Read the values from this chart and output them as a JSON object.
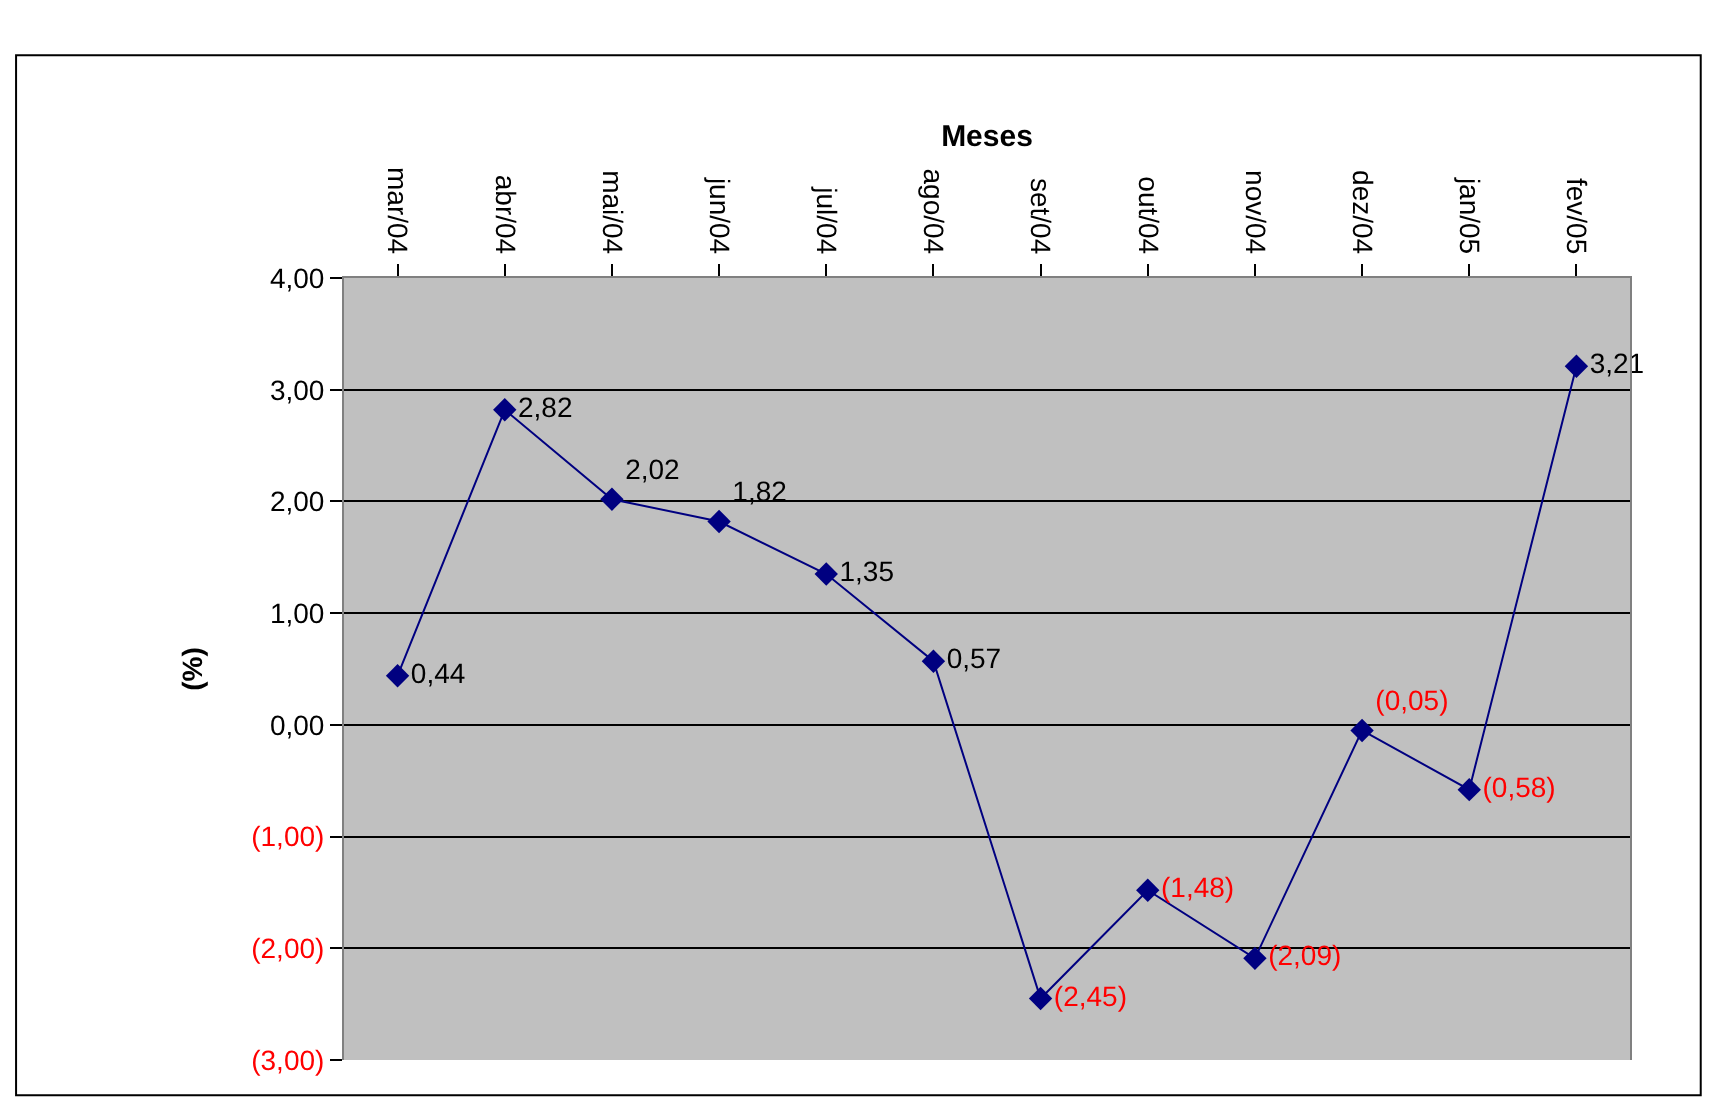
{
  "chart_data": {
    "type": "line",
    "xlabel": "Meses",
    "ylabel": "(%)",
    "categories": [
      "mar/04",
      "abr/04",
      "mai/04",
      "jun/04",
      "jul/04",
      "ago/04",
      "set/04",
      "out/04",
      "nov/04",
      "dez/04",
      "jan/05",
      "fev/05"
    ],
    "series": [
      {
        "color": "#000080",
        "values": [
          0.44,
          2.82,
          2.02,
          1.82,
          1.35,
          0.57,
          -2.45,
          -1.48,
          -2.09,
          -0.05,
          -0.58,
          3.21
        ],
        "value_labels": [
          "0,44",
          "2,82",
          "2,02",
          "1,82",
          "1,35",
          "0,57",
          "(2,45)",
          "(1,48)",
          "(2,09)",
          "(0,05)",
          "(0,58)",
          "3,21"
        ]
      }
    ],
    "ylim": [
      -3,
      4
    ],
    "yticks": [
      {
        "value": 4,
        "label": "4,00"
      },
      {
        "value": 3,
        "label": "3,00"
      },
      {
        "value": 2,
        "label": "2,00"
      },
      {
        "value": 1,
        "label": "1,00"
      },
      {
        "value": 0,
        "label": "0,00"
      },
      {
        "value": -1,
        "label": "(1,00)"
      },
      {
        "value": -2,
        "label": "(2,00)"
      },
      {
        "value": -3,
        "label": "(3,00)"
      }
    ],
    "grid": "y",
    "legend": false,
    "marker": "diamond",
    "line_style": "solid"
  }
}
